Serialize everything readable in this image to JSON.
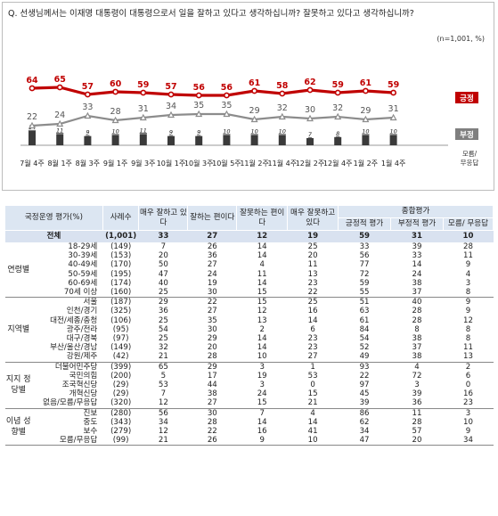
{
  "title": "Q. 선생님께서는 이재명 대통령이 대통령으로서 일을 잘하고 있다고 생각하십니까? 잘못하고 있다고 생각하십니까?",
  "note": "(n=1,001, %)",
  "chart_data": {
    "type": "line",
    "categories": [
      "7월 4주",
      "8월 1주",
      "8월 3주",
      "9월 1주",
      "9월 3주",
      "10월 1주",
      "10월 3주",
      "10월 5주",
      "11월 2주",
      "11월 4주",
      "12월 2주",
      "12월 4주",
      "1월 2주",
      "1월 4주"
    ],
    "series": [
      {
        "name": "긍정",
        "color": "#c00000",
        "values": [
          64,
          65,
          57,
          60,
          59,
          57,
          56,
          56,
          61,
          58,
          62,
          59,
          61,
          59
        ]
      },
      {
        "name": "부정",
        "color": "#8c8c8c",
        "values": [
          22,
          24,
          33,
          28,
          31,
          34,
          35,
          35,
          29,
          32,
          30,
          32,
          29,
          31
        ]
      },
      {
        "name": "모름/무응답",
        "color": "#555555",
        "values": [
          14,
          11,
          9,
          10,
          11,
          9,
          9,
          10,
          10,
          10,
          7,
          8,
          10,
          10
        ]
      }
    ],
    "ylim": [
      0,
      100
    ],
    "grid": false,
    "legend": "end-labels"
  },
  "table": {
    "headers": {
      "category": "국정운영 평가(%)",
      "sample": "사례수",
      "cols": [
        "매우 잘하고 있다",
        "잘하는 편이다",
        "잘못하는 편이다",
        "매우 잘못하고 있다"
      ],
      "group": "종합평가",
      "sub": [
        "긍정적 평가",
        "부정적 평가",
        "모름/ 무응답"
      ]
    },
    "total": {
      "label": "전체",
      "n": "(1,001)",
      "v": [
        "33",
        "27",
        "12",
        "19",
        "59",
        "31",
        "10"
      ]
    },
    "groups": [
      {
        "name": "연령별",
        "rows": [
          {
            "label": "18-29세",
            "n": "(149)",
            "v": [
              "7",
              "26",
              "14",
              "25",
              "33",
              "39",
              "28"
            ]
          },
          {
            "label": "30-39세",
            "n": "(153)",
            "v": [
              "20",
              "36",
              "14",
              "20",
              "56",
              "33",
              "11"
            ]
          },
          {
            "label": "40-49세",
            "n": "(170)",
            "v": [
              "50",
              "27",
              "4",
              "11",
              "77",
              "14",
              "9"
            ]
          },
          {
            "label": "50-59세",
            "n": "(195)",
            "v": [
              "47",
              "24",
              "11",
              "13",
              "72",
              "24",
              "4"
            ]
          },
          {
            "label": "60-69세",
            "n": "(174)",
            "v": [
              "40",
              "19",
              "14",
              "23",
              "59",
              "38",
              "3"
            ]
          },
          {
            "label": "70세 이상",
            "n": "(160)",
            "v": [
              "25",
              "30",
              "15",
              "22",
              "55",
              "37",
              "8"
            ]
          }
        ]
      },
      {
        "name": "지역별",
        "rows": [
          {
            "label": "서울",
            "n": "(187)",
            "v": [
              "29",
              "22",
              "15",
              "25",
              "51",
              "40",
              "9"
            ]
          },
          {
            "label": "인천/경기",
            "n": "(325)",
            "v": [
              "36",
              "27",
              "12",
              "16",
              "63",
              "28",
              "9"
            ]
          },
          {
            "label": "대전/세종/충청",
            "n": "(106)",
            "v": [
              "25",
              "35",
              "13",
              "14",
              "61",
              "28",
              "12"
            ]
          },
          {
            "label": "광주/전라",
            "n": "(95)",
            "v": [
              "54",
              "30",
              "2",
              "6",
              "84",
              "8",
              "8"
            ]
          },
          {
            "label": "대구/경북",
            "n": "(97)",
            "v": [
              "25",
              "29",
              "14",
              "23",
              "54",
              "38",
              "8"
            ]
          },
          {
            "label": "부산/울산/경남",
            "n": "(149)",
            "v": [
              "32",
              "20",
              "14",
              "23",
              "52",
              "37",
              "11"
            ]
          },
          {
            "label": "강원/제주",
            "n": "(42)",
            "v": [
              "21",
              "28",
              "10",
              "27",
              "49",
              "38",
              "13"
            ]
          }
        ]
      },
      {
        "name": "지지 정당별",
        "rows": [
          {
            "label": "더불어민주당",
            "n": "(399)",
            "v": [
              "65",
              "29",
              "3",
              "1",
              "93",
              "4",
              "2"
            ]
          },
          {
            "label": "국민의힘",
            "n": "(200)",
            "v": [
              "5",
              "17",
              "19",
              "53",
              "22",
              "72",
              "6"
            ]
          },
          {
            "label": "조국혁신당",
            "n": "(29)",
            "v": [
              "53",
              "44",
              "3",
              "0",
              "97",
              "3",
              "0"
            ]
          },
          {
            "label": "개혁신당",
            "n": "(29)",
            "v": [
              "7",
              "38",
              "24",
              "15",
              "45",
              "39",
              "16"
            ]
          },
          {
            "label": "없음/모름/무응답",
            "n": "(320)",
            "v": [
              "12",
              "27",
              "15",
              "21",
              "39",
              "36",
              "23"
            ]
          }
        ]
      },
      {
        "name": "이념 성향별",
        "rows": [
          {
            "label": "진보",
            "n": "(280)",
            "v": [
              "56",
              "30",
              "7",
              "4",
              "86",
              "11",
              "3"
            ]
          },
          {
            "label": "중도",
            "n": "(343)",
            "v": [
              "34",
              "28",
              "14",
              "14",
              "62",
              "28",
              "10"
            ]
          },
          {
            "label": "보수",
            "n": "(279)",
            "v": [
              "12",
              "22",
              "16",
              "41",
              "34",
              "57",
              "9"
            ]
          },
          {
            "label": "모름/무응답",
            "n": "(99)",
            "v": [
              "21",
              "26",
              "9",
              "10",
              "47",
              "20",
              "34"
            ]
          }
        ]
      }
    ]
  }
}
